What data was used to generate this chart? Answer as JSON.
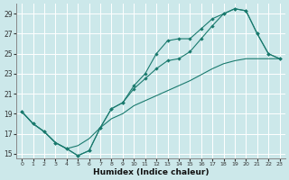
{
  "xlabel": "Humidex (Indice chaleur)",
  "bg_color": "#cce8ea",
  "grid_color": "#b8d8da",
  "line_color": "#1a7a6e",
  "xlim": [
    -0.5,
    23.5
  ],
  "ylim": [
    14.5,
    30.0
  ],
  "xticks": [
    0,
    1,
    2,
    3,
    4,
    5,
    6,
    7,
    8,
    9,
    10,
    11,
    12,
    13,
    14,
    15,
    16,
    17,
    18,
    19,
    20,
    21,
    22,
    23
  ],
  "yticks": [
    15,
    17,
    19,
    21,
    23,
    25,
    27,
    29
  ],
  "line1_x": [
    0,
    1,
    2,
    3,
    4,
    5,
    6,
    7,
    8,
    9,
    10,
    11,
    12,
    13,
    14,
    15,
    16,
    17,
    18,
    19,
    20,
    21,
    22,
    23
  ],
  "line1_y": [
    19.2,
    18.0,
    17.2,
    16.1,
    15.5,
    14.8,
    15.3,
    17.6,
    19.5,
    20.1,
    21.5,
    22.5,
    23.5,
    24.3,
    24.5,
    25.2,
    26.5,
    27.8,
    29.0,
    29.5,
    29.3,
    27.0,
    25.0,
    24.5
  ],
  "line2_x": [
    0,
    1,
    2,
    3,
    4,
    5,
    6,
    7,
    8,
    9,
    10,
    11,
    12,
    13,
    14,
    15,
    16,
    17,
    18,
    19,
    20,
    21,
    22,
    23
  ],
  "line2_y": [
    19.2,
    18.0,
    17.2,
    16.1,
    15.5,
    14.8,
    15.3,
    17.6,
    19.5,
    20.1,
    21.8,
    23.0,
    25.0,
    26.3,
    26.5,
    26.5,
    27.5,
    28.5,
    29.0,
    29.5,
    29.3,
    27.0,
    25.0,
    24.5
  ],
  "line3_x": [
    0,
    1,
    2,
    3,
    4,
    5,
    6,
    7,
    8,
    9,
    10,
    11,
    12,
    13,
    14,
    15,
    16,
    17,
    18,
    19,
    20,
    21,
    22,
    23
  ],
  "line3_y": [
    19.2,
    18.0,
    17.2,
    16.1,
    15.5,
    15.8,
    16.5,
    17.6,
    18.5,
    19.0,
    19.8,
    20.3,
    20.8,
    21.3,
    21.8,
    22.3,
    22.9,
    23.5,
    24.0,
    24.3,
    24.5,
    24.5,
    24.5,
    24.5
  ]
}
